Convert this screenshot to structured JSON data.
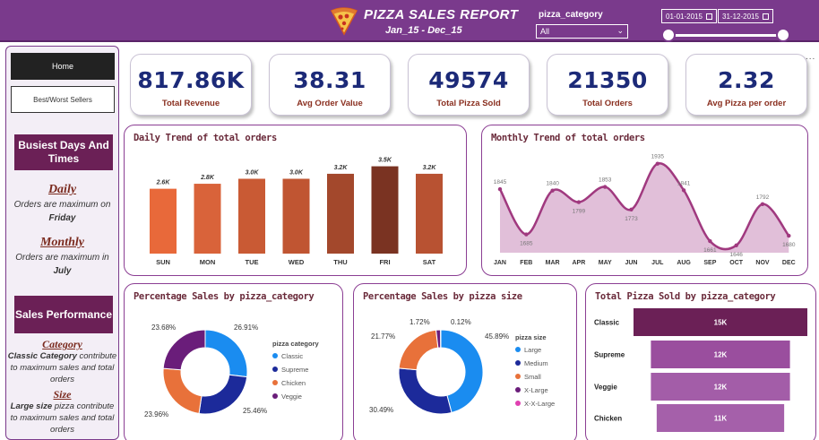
{
  "header": {
    "title": "PIZZA SALES REPORT",
    "subtitle": "Jan_15 - Dec_15",
    "category_filter_label": "pizza_category",
    "category_filter_value": "All",
    "date_start": "01-01-2015",
    "date_end": "31-12-2015",
    "more_label": "..."
  },
  "sidebar": {
    "home_label": "Home",
    "best_worst_label": "Best/Worst Sellers",
    "busiest_heading": "Busiest Days And Times",
    "daily_heading": "Daily",
    "daily_text": "Orders are maximum on",
    "daily_value": "Friday",
    "monthly_heading": "Monthly",
    "monthly_text": "Orders are maximum in",
    "monthly_value": "July",
    "sales_heading": "Sales Performance",
    "category_heading": "Category",
    "category_bold": "Classic Category",
    "category_text": "contribute to maximum sales and total orders",
    "size_heading": "Size",
    "size_bold": "Large size",
    "size_text": "pizza contribute to maximum sales and total orders"
  },
  "kpis": [
    {
      "value": "817.86K",
      "label": "Total Revenue"
    },
    {
      "value": "38.31",
      "label": "Avg Order Value"
    },
    {
      "value": "49574",
      "label": "Total Pizza Sold"
    },
    {
      "value": "21350",
      "label": "Total Orders"
    },
    {
      "value": "2.32",
      "label": "Avg Pizza per order"
    }
  ],
  "colors": {
    "header": "#7a3a8c",
    "kpi_value": "#1c2a78",
    "kpi_label": "#8a2f1f",
    "monthly_line": "#a0397f",
    "monthly_fill": "#dcb4d2"
  },
  "chart_data": [
    {
      "type": "bar",
      "title": "Daily Trend of total orders",
      "categories": [
        "SUN",
        "MON",
        "TUE",
        "WED",
        "THU",
        "FRI",
        "SAT"
      ],
      "values": [
        2.6,
        2.8,
        3.0,
        3.0,
        3.2,
        3.5,
        3.2
      ],
      "data_labels": [
        "2.6K",
        "2.8K",
        "3.0K",
        "3.0K",
        "3.2K",
        "3.5K",
        "3.2K"
      ],
      "colors": [
        "#e8693a",
        "#d9633a",
        "#c95a34",
        "#c05532",
        "#a3482c",
        "#7a3322",
        "#b85232"
      ],
      "ylim": [
        0,
        3.7
      ]
    },
    {
      "type": "area",
      "title": "Monthly Trend of total orders",
      "categories": [
        "JAN",
        "FEB",
        "MAR",
        "APR",
        "MAY",
        "JUN",
        "JUL",
        "AUG",
        "SEP",
        "OCT",
        "NOV",
        "DEC"
      ],
      "values": [
        1845,
        1685,
        1840,
        1799,
        1853,
        1773,
        1935,
        1841,
        1661,
        1646,
        1792,
        1680
      ],
      "ylim": [
        1620,
        1950
      ]
    },
    {
      "type": "pie",
      "title": "Percentage Sales by pizza_category",
      "legend_title": "pizza category",
      "labels": [
        "Classic",
        "Supreme",
        "Chicken",
        "Veggie"
      ],
      "values": [
        26.91,
        25.46,
        23.96,
        23.68
      ],
      "value_labels": [
        "26.91%",
        "25.46%",
        "23.96%",
        "23.68%"
      ],
      "colors": [
        "#1a8cf0",
        "#1c2a9a",
        "#e8713a",
        "#6a1d7a"
      ]
    },
    {
      "type": "pie",
      "title": "Percentage Sales by pizza size",
      "legend_title": "pizza size",
      "labels": [
        "Large",
        "Medium",
        "Small",
        "X-Large",
        "X-X-Large"
      ],
      "values": [
        45.89,
        30.49,
        21.77,
        1.72,
        0.12
      ],
      "value_labels": [
        "45.89%",
        "30.49%",
        "21.77%",
        "1.72%",
        "0.12%"
      ],
      "colors": [
        "#1a8cf0",
        "#1c2a9a",
        "#e8713a",
        "#6a1d7a",
        "#e040b0"
      ]
    },
    {
      "type": "bar",
      "orientation": "horizontal",
      "title": "Total Pizza Sold by pizza_category",
      "categories": [
        "Classic",
        "Supreme",
        "Veggie",
        "Chicken"
      ],
      "values": [
        15,
        12,
        12,
        11
      ],
      "data_labels": [
        "15K",
        "12K",
        "12K",
        "11K"
      ],
      "colors": [
        "#6b2056",
        "#9a4e9e",
        "#a35da8",
        "#a560aa"
      ]
    }
  ]
}
